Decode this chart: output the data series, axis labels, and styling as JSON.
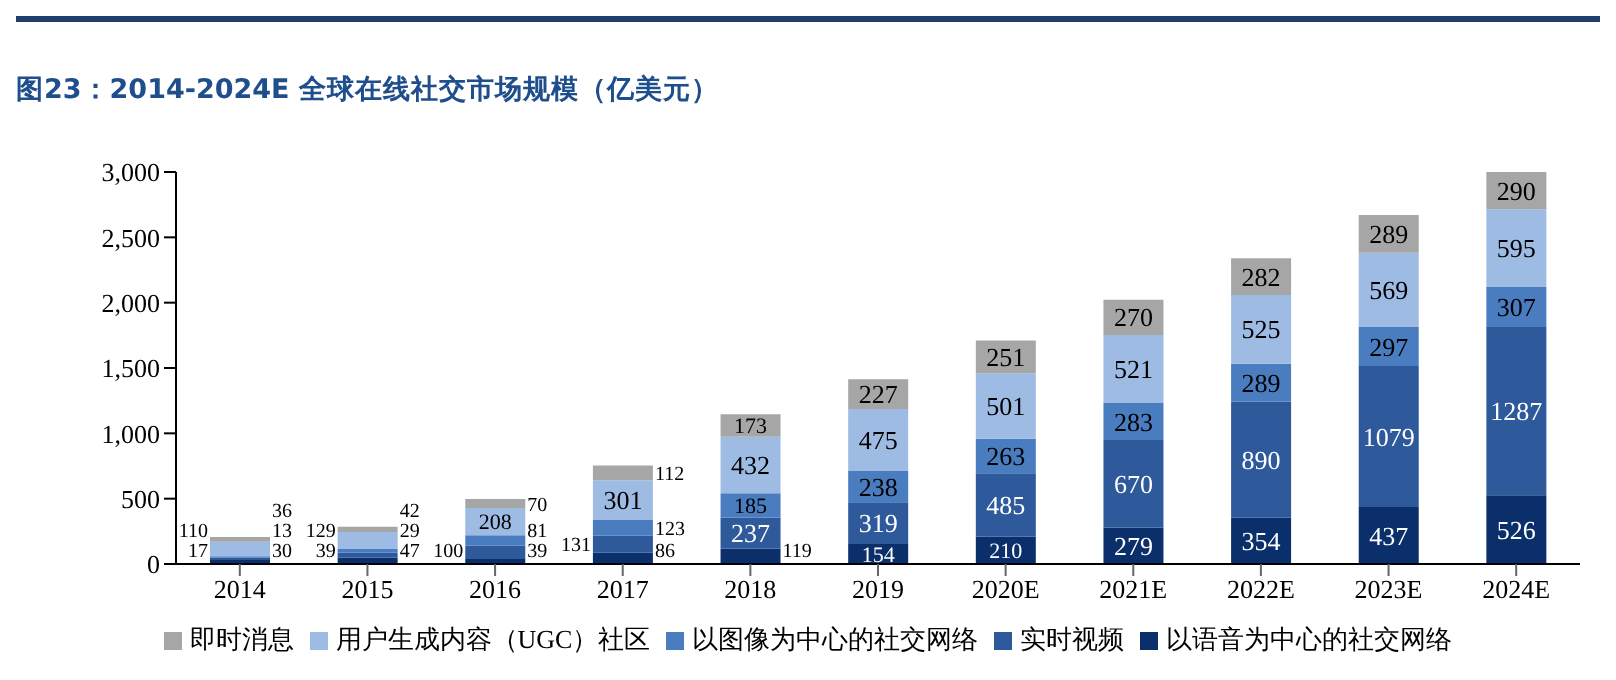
{
  "chart_data": {
    "type": "bar",
    "title": "图23：2014-2024E 全球在线社交市场规模（亿美元）",
    "stacked": true,
    "data_labels": true,
    "legend": "bottom",
    "categories": [
      "2014",
      "2015",
      "2016",
      "2017",
      "2018",
      "2019",
      "2020E",
      "2021E",
      "2022E",
      "2023E",
      "2024E"
    ],
    "ylim": [
      0,
      3000
    ],
    "yticks": [
      0,
      500,
      {
        "value": 1000,
        "label": "1,000"
      },
      {
        "value": 1500,
        "label": "1,500"
      },
      {
        "value": 2000,
        "label": "2,000"
      },
      {
        "value": 2500,
        "label": "2,500"
      },
      {
        "value": 3000,
        "label": "3,000"
      }
    ],
    "series": [
      {
        "name": "以语音为中心的社交网络",
        "color": "#0b2f6b",
        "values": [
          30,
          47,
          39,
          86,
          119,
          154,
          210,
          279,
          354,
          437,
          526
        ]
      },
      {
        "name": "实时视频",
        "color": "#2e5a9c",
        "values": [
          17,
          39,
          100,
          131,
          237,
          319,
          485,
          670,
          890,
          1079,
          1287
        ]
      },
      {
        "name": "以图像为中心的社交网络",
        "color": "#4a7cc0",
        "values": [
          13,
          29,
          81,
          123,
          185,
          238,
          263,
          283,
          289,
          297,
          307
        ]
      },
      {
        "name": "用户生成内容（UGC）社区",
        "color": "#9dbbe3",
        "values": [
          110,
          129,
          208,
          301,
          432,
          475,
          501,
          521,
          525,
          569,
          595
        ]
      },
      {
        "name": "即时消息",
        "color": "#a6a6a6",
        "values": [
          36,
          42,
          70,
          112,
          173,
          227,
          251,
          270,
          282,
          289,
          290
        ]
      }
    ]
  }
}
